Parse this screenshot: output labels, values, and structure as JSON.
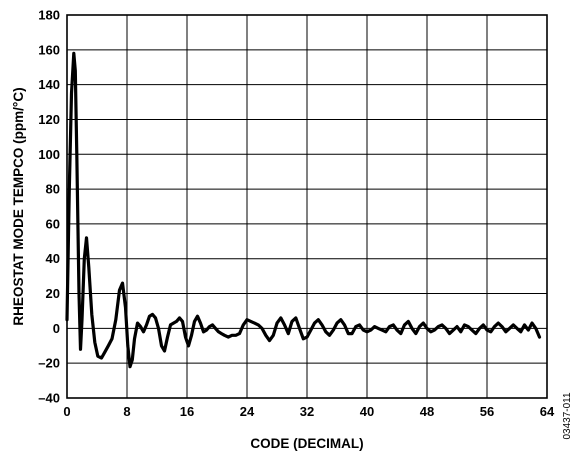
{
  "chart_data": {
    "type": "line",
    "title": "",
    "xlabel": "CODE (DECIMAL)",
    "ylabel": "RHEOSTAT MODE TEMPCO (ppm/°C)",
    "xlim": [
      0,
      64
    ],
    "ylim": [
      -40,
      180
    ],
    "xticks": [
      0,
      8,
      16,
      24,
      32,
      40,
      48,
      56,
      64
    ],
    "yticks": [
      -40,
      -20,
      0,
      20,
      40,
      60,
      80,
      100,
      120,
      140,
      160,
      180
    ],
    "xtick_labels": [
      "0",
      "8",
      "16",
      "24",
      "32",
      "40",
      "48",
      "56",
      "64"
    ],
    "ytick_labels": [
      "–40",
      "–20",
      "0",
      "20",
      "40",
      "60",
      "80",
      "100",
      "120",
      "140",
      "160",
      "180"
    ],
    "grid": true,
    "series": [
      {
        "x": [
          0,
          0.3,
          0.6,
          0.9,
          1.1,
          1.3,
          1.6,
          1.8,
          2.0,
          2.3,
          2.6,
          2.9,
          3.3,
          3.7,
          4.1,
          4.6,
          5.0,
          5.5,
          6.0,
          6.5,
          7.0,
          7.4,
          7.8,
          8.1,
          8.4,
          8.7,
          9.0,
          9.4,
          9.8,
          10.2,
          10.6,
          11.0,
          11.4,
          11.8,
          12.2,
          12.6,
          13.0,
          13.4,
          13.8,
          14.2,
          14.6,
          15.0,
          15.4,
          15.8,
          16.2,
          16.6,
          17.0,
          17.4,
          17.8,
          18.2,
          18.6,
          19.0,
          19.4,
          19.8,
          20.2,
          20.6,
          21.0,
          21.5,
          22.0,
          22.5,
          23.0,
          23.5,
          24.0,
          24.5,
          25.0,
          25.5,
          26.0,
          26.5,
          27.0,
          27.5,
          28.0,
          28.5,
          29.0,
          29.5,
          30.0,
          30.5,
          31.0,
          31.5,
          32.0,
          32.5,
          33.0,
          33.5,
          34.0,
          34.5,
          35.0,
          35.5,
          36.0,
          36.5,
          37.0,
          37.5,
          38.0,
          38.5,
          39.0,
          39.5,
          40.0,
          40.5,
          41.0,
          41.5,
          42.0,
          42.5,
          43.0,
          43.5,
          44.0,
          44.5,
          45.0,
          45.5,
          46.0,
          46.5,
          47.0,
          47.5,
          48.0,
          48.5,
          49.0,
          49.5,
          50.0,
          50.5,
          51.0,
          51.5,
          52.0,
          52.5,
          53.0,
          53.5,
          54.0,
          54.5,
          55.0,
          55.5,
          56.0,
          56.5,
          57.0,
          57.5,
          58.0,
          58.5,
          59.0,
          59.5,
          60.0,
          60.5,
          61.0,
          61.5,
          62.0,
          62.5,
          63.0
        ],
        "y": [
          5,
          80,
          135,
          158,
          148,
          100,
          20,
          -12,
          5,
          40,
          52,
          35,
          8,
          -8,
          -16,
          -17,
          -14,
          -10,
          -6,
          5,
          22,
          26,
          12,
          -10,
          -22,
          -18,
          -6,
          3,
          1,
          -2,
          2,
          7,
          8,
          6,
          0,
          -10,
          -13,
          -5,
          2,
          3,
          4,
          6,
          4,
          -5,
          -10,
          -4,
          4,
          7,
          3,
          -2,
          -1,
          1,
          2,
          0,
          -2,
          -3,
          -4,
          -5,
          -4,
          -4,
          -3,
          2,
          5,
          4,
          3,
          2,
          0,
          -4,
          -7,
          -4,
          3,
          6,
          2,
          -3,
          4,
          6,
          0,
          -6,
          -5,
          -1,
          3,
          5,
          2,
          -2,
          -4,
          -1,
          3,
          5,
          2,
          -3,
          -3,
          1,
          2,
          -1,
          -2,
          -1,
          1,
          0,
          -1,
          -2,
          1,
          2,
          -1,
          -3,
          2,
          4,
          0,
          -3,
          1,
          3,
          0,
          -2,
          -1,
          1,
          2,
          0,
          -3,
          -1,
          1,
          -2,
          2,
          1,
          -1,
          -3,
          0,
          2,
          -1,
          -2,
          1,
          3,
          1,
          -2,
          0,
          2,
          0,
          -2,
          2,
          -1,
          3,
          0,
          -5
        ]
      }
    ]
  },
  "figure_id": "03437-011",
  "colors": {
    "line": "#000000",
    "grid": "#000000",
    "background": "#ffffff"
  }
}
